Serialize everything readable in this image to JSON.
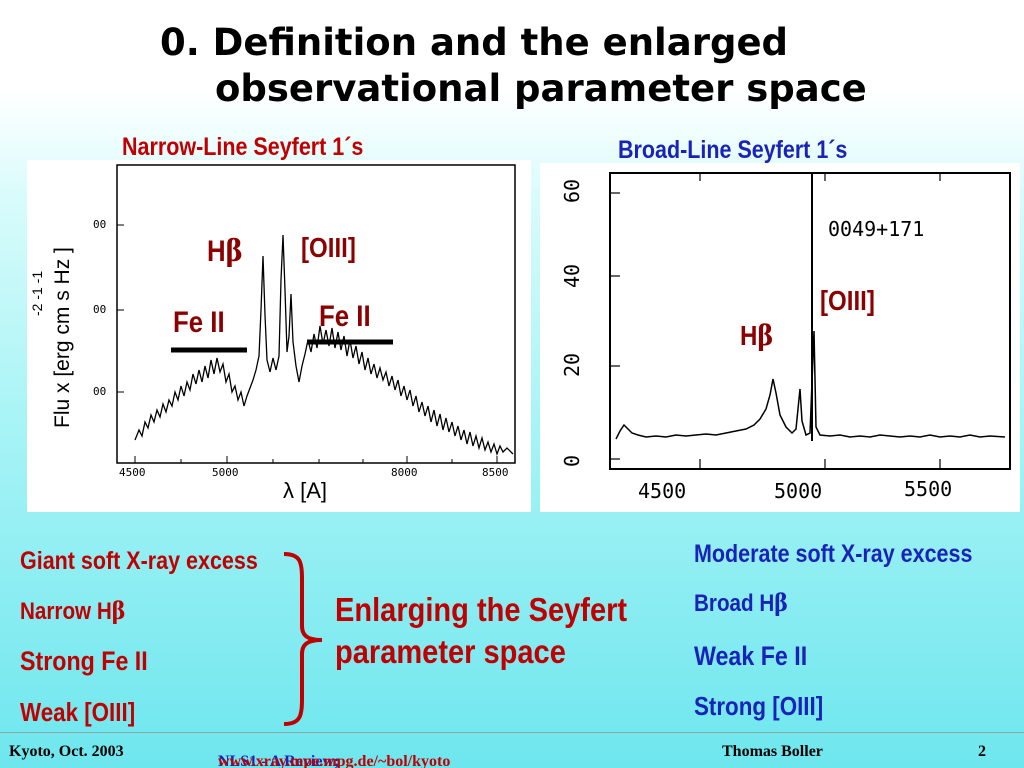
{
  "title": {
    "line1": "0. Definition and the enlarged",
    "line2": "observational parameter space"
  },
  "left_panel": {
    "header": "Narrow-Line Seyfert 1´s",
    "y_axis_label": "Flu x [erg cm s Hz   ]",
    "y_axis_exponents": "-2   -1    -1",
    "x_axis_label_symbol": "λ",
    "x_axis_label_unit": "[A]",
    "x_ticks": [
      "4500",
      "5000",
      "8000",
      "8500"
    ],
    "y_ticks": [
      "00",
      "00",
      "00"
    ],
    "labels": {
      "hbeta_prefix": "H",
      "hbeta_greek": "β",
      "oiii": "[OIII]",
      "fe_left": "Fe II",
      "fe_right": "Fe II"
    }
  },
  "right_panel": {
    "header": "Broad-Line Seyfert 1´s",
    "object_name": "0049+171",
    "x_ticks": [
      "4500",
      "5000",
      "5500"
    ],
    "y_ticks": [
      "60",
      "40",
      "20",
      "0"
    ],
    "labels": {
      "oiii": "[OIII]",
      "hbeta_prefix": "H",
      "hbeta_greek": "β"
    }
  },
  "left_list": [
    {
      "text": "Giant soft X-ray excess"
    },
    {
      "prefix": "Narrow H",
      "greek": "β"
    },
    {
      "text": "Strong  Fe II"
    },
    {
      "text": "Weak [OIII]"
    }
  ],
  "center_text": {
    "line1": "Enlarging the Seyfert",
    "line2": "parameter space"
  },
  "right_list": [
    {
      "text": "Moderate soft X-ray excess"
    },
    {
      "prefix": "Broad H",
      "greek": "β"
    },
    {
      "text": "Weak Fe II"
    },
    {
      "text": "Strong [OIII]"
    }
  ],
  "footer": {
    "left": "Kyoto, Oct. 2003",
    "center_prefix": "NLS1 - A Review; ",
    "center_url": "www.xray.mpe.mpg.de/~bol/kyoto",
    "author": "Thomas Boller",
    "page": "2"
  },
  "colors": {
    "red": "#c00000",
    "dark_red": "#8b0000",
    "blue": "#1a23b8",
    "bg_bottom": "#6ee6ee"
  }
}
